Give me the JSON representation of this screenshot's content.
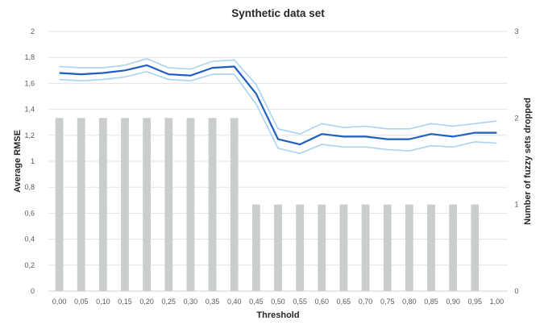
{
  "chart_data": {
    "type": "line",
    "title": "Synthetic data set",
    "xlabel": "Threshold",
    "ylabel": "Average RMSE",
    "y2label": "Number of fuzzy sets dropped",
    "categories": [
      "0,00",
      "0,05",
      "0,10",
      "0,15",
      "0,20",
      "0,25",
      "0,30",
      "0,35",
      "0,40",
      "0,45",
      "0,50",
      "0,55",
      "0,60",
      "0,65",
      "0,70",
      "0,75",
      "0,80",
      "0,85",
      "0,90",
      "0,95",
      "1,00"
    ],
    "ylim": [
      0,
      2
    ],
    "yticks": [
      "0",
      "0,2",
      "0,4",
      "0,6",
      "0,8",
      "1",
      "1,2",
      "1,4",
      "1,6",
      "1,8",
      "2"
    ],
    "y2lim": [
      0,
      3
    ],
    "y2ticks": [
      "0",
      "1",
      "2",
      "3"
    ],
    "grid": true,
    "series": [
      {
        "kind": "bar",
        "axis": "secondary",
        "color": "#c9cdcb",
        "values": [
          2,
          2,
          2,
          2,
          2,
          2,
          2,
          2,
          2,
          1,
          1,
          1,
          1,
          1,
          1,
          1,
          1,
          1,
          1,
          1,
          0
        ]
      },
      {
        "kind": "line",
        "axis": "primary",
        "color": "#a9d3f0",
        "values": [
          1.73,
          1.72,
          1.72,
          1.74,
          1.79,
          1.72,
          1.71,
          1.77,
          1.78,
          1.59,
          1.25,
          1.21,
          1.29,
          1.26,
          1.27,
          1.25,
          1.25,
          1.29,
          1.27,
          1.29,
          1.31
        ]
      },
      {
        "kind": "line",
        "axis": "primary",
        "color": "#a9d3f0",
        "values": [
          1.63,
          1.62,
          1.63,
          1.65,
          1.69,
          1.63,
          1.62,
          1.67,
          1.67,
          1.44,
          1.1,
          1.06,
          1.13,
          1.11,
          1.11,
          1.09,
          1.08,
          1.12,
          1.11,
          1.15,
          1.14
        ]
      },
      {
        "kind": "line",
        "axis": "primary",
        "color": "#1f5fbf",
        "values": [
          1.68,
          1.67,
          1.68,
          1.7,
          1.74,
          1.67,
          1.66,
          1.72,
          1.73,
          1.52,
          1.17,
          1.13,
          1.21,
          1.19,
          1.19,
          1.17,
          1.17,
          1.21,
          1.19,
          1.22,
          1.22
        ]
      }
    ]
  }
}
